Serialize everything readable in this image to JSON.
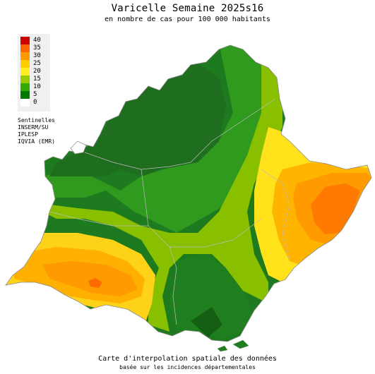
{
  "title": "Varicelle Semaine 2025s16",
  "subtitle": "en nombre de cas pour 100 000 habitants",
  "legend": {
    "items": [
      {
        "label": "40",
        "color": "#cc0000"
      },
      {
        "label": "35",
        "color": "#ff6600"
      },
      {
        "label": "30",
        "color": "#ff9900"
      },
      {
        "label": "25",
        "color": "#ffcc00"
      },
      {
        "label": "20",
        "color": "#ffee22"
      },
      {
        "label": "15",
        "color": "#99cc00"
      },
      {
        "label": "10",
        "color": "#33aa00"
      },
      {
        "label": "5",
        "color": "#007a00"
      },
      {
        "label": "0",
        "color": "#ffffff"
      }
    ]
  },
  "sources": [
    "Sentinelles",
    "INSERM/SU",
    "IPLESP",
    "IQVIA (EMR)"
  ],
  "footer": {
    "main": "Carte d'interpolation spatiale des données",
    "sub": "basée sur les incidences départementales"
  }
}
